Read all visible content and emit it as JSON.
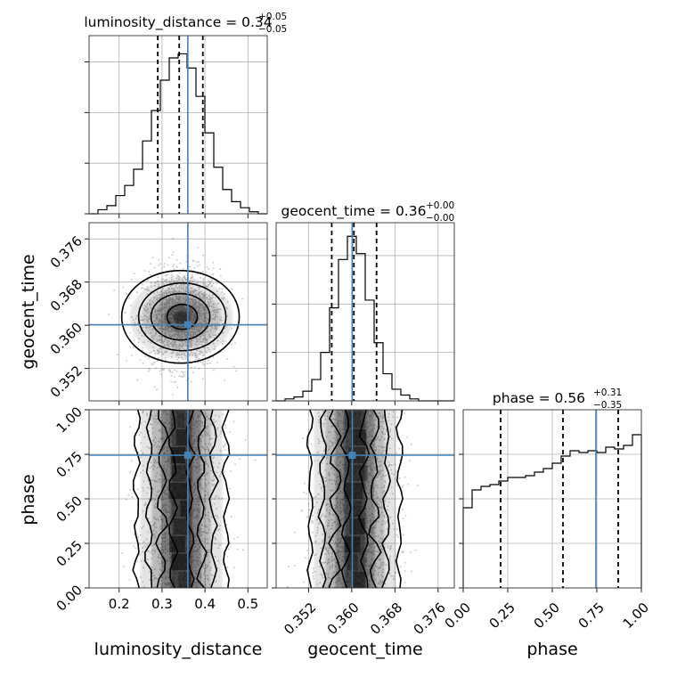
{
  "chart_data": {
    "type": "corner",
    "colors": {
      "truth": "#4682b4",
      "contour": "#000000",
      "density": "#000000",
      "grid": "#b0b0b0"
    },
    "parameters": [
      {
        "name": "luminosity_distance",
        "label": "luminosity_distance",
        "title": "luminosity_distance = 0.34",
        "title_upper": "+0.05",
        "title_lower": "−0.05",
        "range": [
          0.13,
          0.545
        ],
        "ticks": [
          0.2,
          0.3,
          0.4,
          0.5
        ],
        "tick_labels": [
          "0.2",
          "0.3",
          "0.4",
          "0.5"
        ],
        "quantiles": [
          0.29,
          0.34,
          0.395
        ],
        "truth": 0.36,
        "hist": [
          0,
          2,
          4,
          9,
          14,
          22,
          36,
          51,
          66,
          77,
          79,
          72,
          58,
          40,
          23,
          12,
          6,
          3,
          1,
          0
        ]
      },
      {
        "name": "geocent_time",
        "label": "geocent_time",
        "title": "geocent_time = 0.36",
        "title_upper": "+0.00",
        "title_lower": "−0.00",
        "range": [
          0.346,
          0.379
        ],
        "ticks": [
          0.352,
          0.36,
          0.368,
          0.376
        ],
        "tick_labels": [
          "0.352",
          "0.360",
          "0.368",
          "0.376"
        ],
        "quantiles": [
          0.3563,
          0.3604,
          0.3646
        ],
        "truth": 0.3601,
        "hist": [
          0,
          1,
          2,
          5,
          11,
          25,
          48,
          73,
          85,
          76,
          52,
          30,
          14,
          6,
          3,
          1,
          0,
          0,
          0,
          0
        ]
      },
      {
        "name": "phase",
        "label": "phase",
        "title": "phase = 0.56",
        "title_upper": "+0.31",
        "title_lower": "−0.35",
        "range": [
          0.0,
          1.0
        ],
        "ticks": [
          0.0,
          0.25,
          0.5,
          0.75,
          1.0
        ],
        "tick_labels": [
          "0.00",
          "0.25",
          "0.50",
          "0.75",
          "1.00"
        ],
        "quantiles": [
          0.21,
          0.56,
          0.87
        ],
        "truth": 0.745,
        "hist": [
          45,
          55,
          57,
          58,
          60,
          62,
          62,
          63,
          65,
          67,
          70,
          74,
          77,
          76,
          77,
          76,
          79,
          78,
          80,
          86
        ]
      }
    ],
    "hist_ymax": [
      88,
      92,
      100
    ],
    "hist_ticks": [
      [
        0,
        25,
        50,
        75
      ],
      [
        0,
        25,
        50,
        75
      ],
      [
        0,
        25,
        50,
        75
      ]
    ],
    "mode": [
      {
        "luminosity_distance": 0.345,
        "geocent_time": 0.3615
      },
      {
        "luminosity_distance_sd": 0.03,
        "geocent_time_sd": 0.003
      }
    ]
  }
}
